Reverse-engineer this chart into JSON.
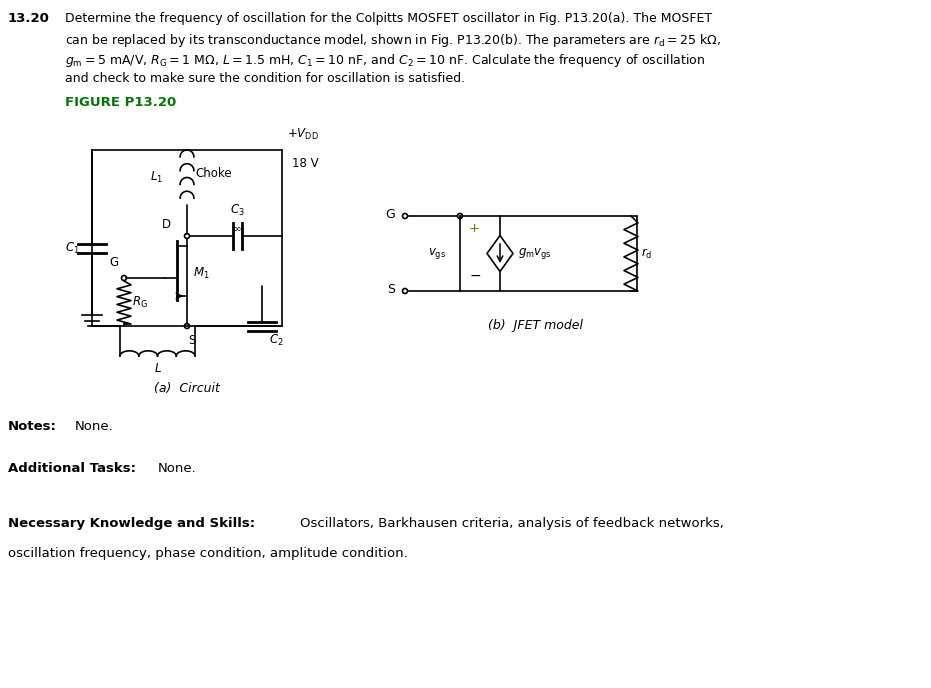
{
  "problem_number": "13.20",
  "figure_label": "FIGURE P13.20",
  "caption_a": "(a)  Circuit",
  "caption_b": "(b)  JFET model",
  "notes_label": "Notes:",
  "notes_text": "None.",
  "tasks_label": "Additional Tasks:",
  "tasks_text": "None.",
  "skills_label": "Necessary Knowledge and Skills:",
  "skills_text1": "Oscillators, Barkhausen criteria, analysis of feedback networks,",
  "skills_text2": "oscillation frequency, phase condition, amplitude condition.",
  "bg_color": "#ffffff",
  "text_color": "#000000",
  "green_color": "#007700",
  "olive_color": "#807000"
}
